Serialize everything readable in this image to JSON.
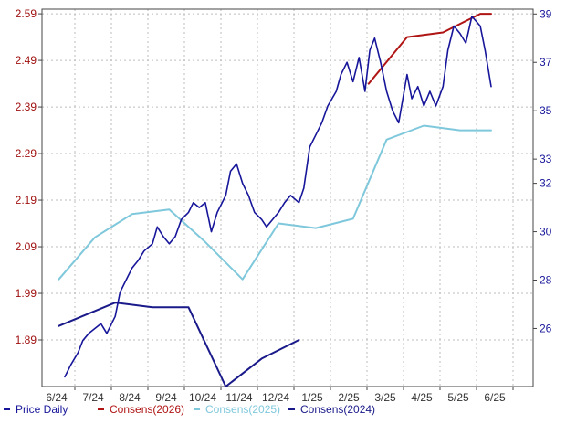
{
  "chart_data": {
    "type": "line",
    "grid": true,
    "legend_position": "bottom",
    "colors": {
      "price": "#17169a",
      "cons2026": "#b01515",
      "cons2025": "#7fc8dc",
      "cons2024": "#1a1a8a",
      "left_ticks": "#a01010",
      "right_ticks": "#17169a"
    },
    "x_ticks": [
      "6/24",
      "7/24",
      "8/24",
      "9/24",
      "10/24",
      "11/24",
      "12/24",
      "1/25",
      "2/25",
      "3/25",
      "4/25",
      "5/25",
      "6/25"
    ],
    "y_left": {
      "ylim": [
        1.79,
        2.6
      ],
      "ticks": [
        "1.89",
        "1.99",
        "2.09",
        "2.19",
        "2.29",
        "2.39",
        "2.49",
        "2.59"
      ]
    },
    "y_right": {
      "ylim": [
        23.6,
        39.2
      ],
      "ticks": [
        "26",
        "28",
        "30",
        "32",
        "33",
        "35",
        "37",
        "39"
      ]
    },
    "legend": [
      {
        "key": "price",
        "label": "Price Daily"
      },
      {
        "key": "cons2026",
        "label": "Consens(2026)"
      },
      {
        "key": "cons2025",
        "label": "Consens(2025)"
      },
      {
        "key": "cons2024",
        "label": "Consens(2024)"
      }
    ],
    "series": [
      {
        "name": "Consens(2024)",
        "key": "cons2024",
        "axis": "left",
        "x": [
          "2024-06-15",
          "2024-08-01",
          "2024-09-01",
          "2024-10-01",
          "2024-11-01",
          "2024-12-01",
          "2025-01-01"
        ],
        "values": [
          1.92,
          1.97,
          1.96,
          1.96,
          1.79,
          1.85,
          1.89
        ]
      },
      {
        "name": "Consens(2025)",
        "key": "cons2025",
        "axis": "left",
        "x": [
          "2024-06-15",
          "2024-07-15",
          "2024-08-15",
          "2024-09-15",
          "2024-10-15",
          "2024-11-15",
          "2024-12-15",
          "2025-01-15",
          "2025-02-15",
          "2025-03-15",
          "2025-04-15",
          "2025-05-15",
          "2025-06-10"
        ],
        "values": [
          2.02,
          2.11,
          2.16,
          2.17,
          2.1,
          2.02,
          2.14,
          2.13,
          2.15,
          2.32,
          2.35,
          2.34,
          2.34
        ]
      },
      {
        "name": "Consens(2026)",
        "key": "cons2026",
        "axis": "left",
        "x": [
          "2025-02-28",
          "2025-04-01",
          "2025-05-01",
          "2025-06-01",
          "2025-06-10"
        ],
        "values": [
          2.44,
          2.54,
          2.55,
          2.59,
          2.59
        ]
      },
      {
        "name": "Price Daily",
        "key": "price",
        "axis": "right",
        "x": [
          "2024-06-20",
          "2024-06-25",
          "2024-07-01",
          "2024-07-05",
          "2024-07-10",
          "2024-07-15",
          "2024-07-20",
          "2024-07-25",
          "2024-08-01",
          "2024-08-05",
          "2024-08-10",
          "2024-08-15",
          "2024-08-20",
          "2024-08-25",
          "2024-09-01",
          "2024-09-05",
          "2024-09-10",
          "2024-09-15",
          "2024-09-20",
          "2024-09-25",
          "2024-10-01",
          "2024-10-05",
          "2024-10-10",
          "2024-10-15",
          "2024-10-20",
          "2024-10-25",
          "2024-11-01",
          "2024-11-05",
          "2024-11-10",
          "2024-11-15",
          "2024-11-20",
          "2024-11-25",
          "2024-12-01",
          "2024-12-05",
          "2024-12-10",
          "2024-12-15",
          "2024-12-20",
          "2024-12-25",
          "2025-01-01",
          "2025-01-05",
          "2025-01-10",
          "2025-01-15",
          "2025-01-20",
          "2025-01-25",
          "2025-02-01",
          "2025-02-05",
          "2025-02-10",
          "2025-02-15",
          "2025-02-20",
          "2025-02-25",
          "2025-03-01",
          "2025-03-05",
          "2025-03-10",
          "2025-03-15",
          "2025-03-20",
          "2025-03-25",
          "2025-04-01",
          "2025-04-05",
          "2025-04-10",
          "2025-04-15",
          "2025-04-20",
          "2025-04-25",
          "2025-05-01",
          "2025-05-05",
          "2025-05-10",
          "2025-05-15",
          "2025-05-20",
          "2025-05-25",
          "2025-06-01",
          "2025-06-05",
          "2025-06-10"
        ],
        "values": [
          24.0,
          24.5,
          25.0,
          25.5,
          25.8,
          26.0,
          26.2,
          25.8,
          26.5,
          27.5,
          28.0,
          28.5,
          28.8,
          29.2,
          29.5,
          30.2,
          29.8,
          29.5,
          29.8,
          30.5,
          30.8,
          31.2,
          31.0,
          31.2,
          30.0,
          30.8,
          31.5,
          32.5,
          32.8,
          32.0,
          31.5,
          30.8,
          30.5,
          30.2,
          30.5,
          30.8,
          31.2,
          31.5,
          31.2,
          31.8,
          33.5,
          34.0,
          34.5,
          35.2,
          35.8,
          36.5,
          37.0,
          36.2,
          37.2,
          35.8,
          37.5,
          38.0,
          37.0,
          35.8,
          35.0,
          34.5,
          36.5,
          35.5,
          36.0,
          35.2,
          35.8,
          35.2,
          36.0,
          37.5,
          38.5,
          38.2,
          37.8,
          38.9,
          38.5,
          37.5,
          36.0
        ]
      }
    ]
  }
}
